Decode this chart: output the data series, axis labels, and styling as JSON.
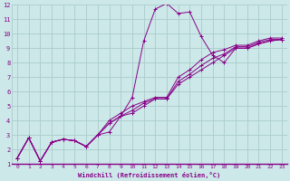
{
  "xlabel": "Windchill (Refroidissement éolien,°C)",
  "bg_color": "#cce8e8",
  "grid_color": "#aacccc",
  "line_color": "#880088",
  "xlim": [
    -0.5,
    23.5
  ],
  "ylim": [
    1,
    12
  ],
  "xticks": [
    0,
    1,
    2,
    3,
    4,
    5,
    6,
    7,
    8,
    9,
    10,
    11,
    12,
    13,
    14,
    15,
    16,
    17,
    18,
    19,
    20,
    21,
    22,
    23
  ],
  "yticks": [
    1,
    2,
    3,
    4,
    5,
    6,
    7,
    8,
    9,
    10,
    11,
    12
  ],
  "lines": [
    {
      "x": [
        0,
        1,
        2,
        3,
        4,
        5,
        6,
        7,
        8,
        9,
        10,
        11,
        12,
        13,
        14,
        15,
        16,
        17,
        18,
        19,
        20,
        21,
        22,
        23
      ],
      "y": [
        1.4,
        2.8,
        1.2,
        2.5,
        2.7,
        2.6,
        2.2,
        3.0,
        3.2,
        4.3,
        5.6,
        9.5,
        11.7,
        12.1,
        11.4,
        11.5,
        9.8,
        8.5,
        8.0,
        9.0,
        9.0,
        9.3,
        9.5,
        9.6
      ]
    },
    {
      "x": [
        0,
        1,
        2,
        3,
        4,
        5,
        6,
        7,
        8,
        9,
        10,
        11,
        12,
        13,
        14,
        15,
        16,
        17,
        18,
        19,
        20,
        21,
        22,
        23
      ],
      "y": [
        1.4,
        2.8,
        1.2,
        2.5,
        2.7,
        2.6,
        2.2,
        3.0,
        3.8,
        4.3,
        4.5,
        5.0,
        5.5,
        5.5,
        6.5,
        7.0,
        7.5,
        8.0,
        8.5,
        9.0,
        9.0,
        9.3,
        9.5,
        9.6
      ]
    },
    {
      "x": [
        0,
        1,
        2,
        3,
        4,
        5,
        6,
        7,
        8,
        9,
        10,
        11,
        12,
        13,
        14,
        15,
        16,
        17,
        18,
        19,
        20,
        21,
        22,
        23
      ],
      "y": [
        1.4,
        2.8,
        1.2,
        2.5,
        2.7,
        2.6,
        2.2,
        3.0,
        3.8,
        4.3,
        4.7,
        5.2,
        5.5,
        5.5,
        6.7,
        7.2,
        7.8,
        8.3,
        8.6,
        9.1,
        9.1,
        9.4,
        9.6,
        9.6
      ]
    },
    {
      "x": [
        0,
        1,
        2,
        3,
        4,
        5,
        6,
        7,
        8,
        9,
        10,
        11,
        12,
        13,
        14,
        15,
        16,
        17,
        18,
        19,
        20,
        21,
        22,
        23
      ],
      "y": [
        1.4,
        2.8,
        1.2,
        2.5,
        2.7,
        2.6,
        2.2,
        3.0,
        4.0,
        4.5,
        5.0,
        5.3,
        5.6,
        5.6,
        7.0,
        7.5,
        8.2,
        8.7,
        8.9,
        9.2,
        9.2,
        9.5,
        9.7,
        9.7
      ]
    }
  ]
}
